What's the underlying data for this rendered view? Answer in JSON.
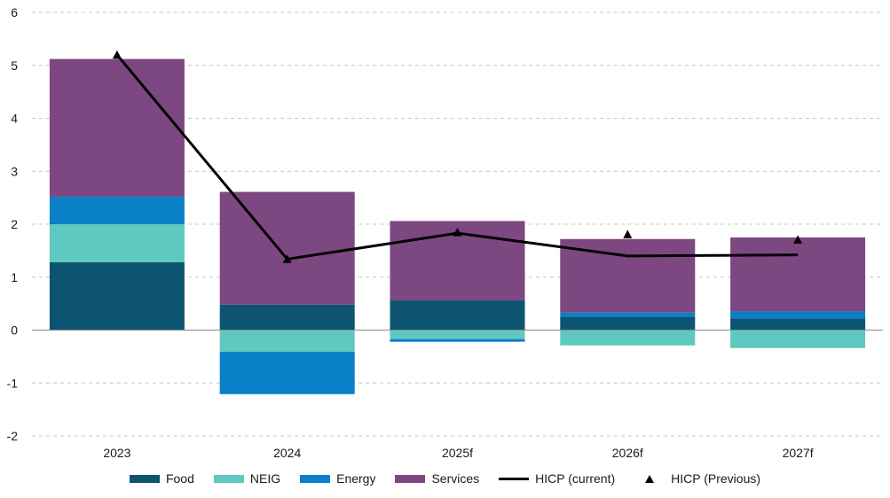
{
  "chart_data": {
    "type": "bar",
    "stacked": true,
    "categories": [
      "2023",
      "2024",
      "2025f",
      "2026f",
      "2027f"
    ],
    "y_ticks": [
      "6",
      "5",
      "4",
      "3",
      "2",
      "1",
      "0",
      "-1",
      "-2"
    ],
    "ylim": [
      -2,
      6
    ],
    "grid": "horizontal dashed",
    "legend_position": "bottom",
    "series": [
      {
        "name": "Food",
        "color": "#0c5471",
        "values": [
          1.28,
          0.48,
          0.56,
          0.25,
          0.22
        ]
      },
      {
        "name": "NEIG",
        "color": "#5fc8c0",
        "values": [
          0.72,
          -0.41,
          -0.17,
          -0.29,
          -0.34
        ]
      },
      {
        "name": "Energy",
        "color": "#0a80c8",
        "values": [
          0.52,
          -0.8,
          -0.05,
          0.08,
          0.13
        ]
      },
      {
        "name": "Services",
        "color": "#7d4781",
        "values": [
          2.6,
          2.13,
          1.5,
          1.39,
          1.4
        ]
      }
    ],
    "lines": [
      {
        "name": "HICP (current)",
        "color": "#000000",
        "style": "line",
        "values": [
          5.2,
          1.34,
          1.83,
          1.4,
          1.42
        ]
      },
      {
        "name": "HICP (Previous)",
        "color": "#000000",
        "style": "triangle-marker",
        "values": [
          5.2,
          1.34,
          1.85,
          1.81,
          1.71
        ]
      }
    ]
  }
}
